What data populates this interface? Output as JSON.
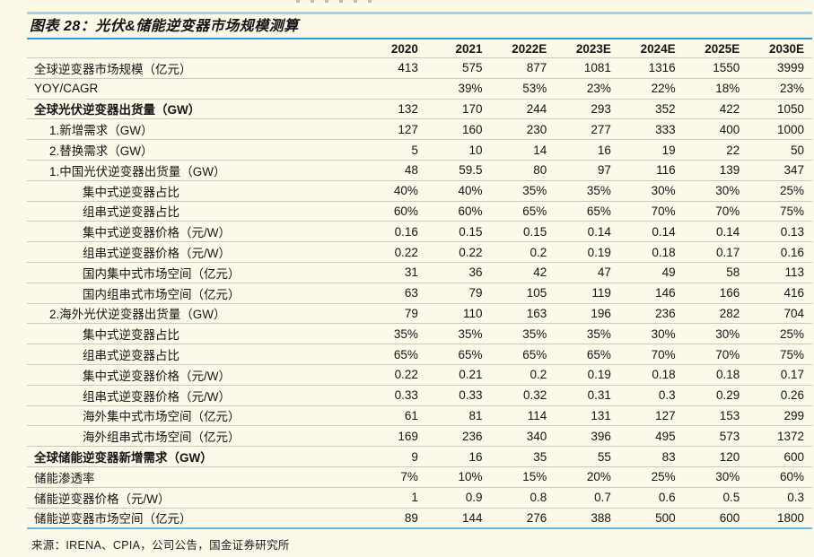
{
  "colors": {
    "background": "#fdf9e9",
    "top_rule": "#a5d2e8",
    "title_rule": "#2f9ad0",
    "bottom_rule": "#5fb9e4",
    "row_line": "#c9c9c0"
  },
  "chart_data": {
    "type": "table",
    "title": "图表 28：光伏&储能逆变器市场规模测算",
    "source": "来源：IRENA、CPIA，公司公告，国金证券研究所",
    "columns": [
      "2020",
      "2021",
      "2022E",
      "2023E",
      "2024E",
      "2025E",
      "2030E"
    ],
    "rows": [
      {
        "label": "全球逆变器市场规模（亿元）",
        "indent": 0,
        "bold": false,
        "values": [
          "413",
          "575",
          "877",
          "1081",
          "1316",
          "1550",
          "3999"
        ]
      },
      {
        "label": "YOY/CAGR",
        "indent": 0,
        "bold": false,
        "values": [
          "",
          "39%",
          "53%",
          "23%",
          "22%",
          "18%",
          "23%"
        ]
      },
      {
        "label": "全球光伏逆变器出货量（GW）",
        "indent": 0,
        "bold": true,
        "values": [
          "132",
          "170",
          "244",
          "293",
          "352",
          "422",
          "1050"
        ]
      },
      {
        "label": "1.新增需求（GW）",
        "indent": 1,
        "bold": false,
        "values": [
          "127",
          "160",
          "230",
          "277",
          "333",
          "400",
          "1000"
        ]
      },
      {
        "label": "2.替换需求（GW）",
        "indent": 1,
        "bold": false,
        "values": [
          "5",
          "10",
          "14",
          "16",
          "19",
          "22",
          "50"
        ]
      },
      {
        "label": "1.中国光伏逆变器出货量（GW）",
        "indent": 1,
        "bold": false,
        "values": [
          "48",
          "59.5",
          "80",
          "97",
          "116",
          "139",
          "347"
        ]
      },
      {
        "label": "集中式逆变器占比",
        "indent": 2,
        "bold": false,
        "values": [
          "40%",
          "40%",
          "35%",
          "35%",
          "30%",
          "30%",
          "25%"
        ]
      },
      {
        "label": "组串式逆变器占比",
        "indent": 2,
        "bold": false,
        "values": [
          "60%",
          "60%",
          "65%",
          "65%",
          "70%",
          "70%",
          "75%"
        ]
      },
      {
        "label": "集中式逆变器价格（元/W）",
        "indent": 2,
        "bold": false,
        "values": [
          "0.16",
          "0.15",
          "0.15",
          "0.14",
          "0.14",
          "0.14",
          "0.13"
        ]
      },
      {
        "label": "组串式逆变器价格（元/W）",
        "indent": 2,
        "bold": false,
        "values": [
          "0.22",
          "0.22",
          "0.2",
          "0.19",
          "0.18",
          "0.17",
          "0.16"
        ]
      },
      {
        "label": "国内集中式市场空间（亿元）",
        "indent": 2,
        "bold": false,
        "values": [
          "31",
          "36",
          "42",
          "47",
          "49",
          "58",
          "113"
        ]
      },
      {
        "label": "国内组串式市场空间（亿元）",
        "indent": 2,
        "bold": false,
        "values": [
          "63",
          "79",
          "105",
          "119",
          "146",
          "166",
          "416"
        ]
      },
      {
        "label": "2.海外光伏逆变器出货量（GW）",
        "indent": 1,
        "bold": false,
        "values": [
          "79",
          "110",
          "163",
          "196",
          "236",
          "282",
          "704"
        ]
      },
      {
        "label": "集中式逆变器占比",
        "indent": 2,
        "bold": false,
        "values": [
          "35%",
          "35%",
          "35%",
          "35%",
          "30%",
          "30%",
          "25%"
        ]
      },
      {
        "label": "组串式逆变器占比",
        "indent": 2,
        "bold": false,
        "values": [
          "65%",
          "65%",
          "65%",
          "65%",
          "70%",
          "70%",
          "75%"
        ]
      },
      {
        "label": "集中式逆变器价格（元/W）",
        "indent": 2,
        "bold": false,
        "values": [
          "0.22",
          "0.21",
          "0.2",
          "0.19",
          "0.18",
          "0.18",
          "0.17"
        ]
      },
      {
        "label": "组串式逆变器价格（元/W）",
        "indent": 2,
        "bold": false,
        "values": [
          "0.33",
          "0.33",
          "0.32",
          "0.31",
          "0.3",
          "0.29",
          "0.26"
        ]
      },
      {
        "label": "海外集中式市场空间（亿元）",
        "indent": 2,
        "bold": false,
        "values": [
          "61",
          "81",
          "114",
          "131",
          "127",
          "153",
          "299"
        ]
      },
      {
        "label": "海外组串式市场空间（亿元）",
        "indent": 2,
        "bold": false,
        "values": [
          "169",
          "236",
          "340",
          "396",
          "495",
          "573",
          "1372"
        ]
      },
      {
        "label": "全球储能逆变器新增需求（GW）",
        "indent": 0,
        "bold": true,
        "values": [
          "9",
          "16",
          "35",
          "55",
          "83",
          "120",
          "600"
        ]
      },
      {
        "label": "储能渗透率",
        "indent": 0,
        "bold": false,
        "values": [
          "7%",
          "10%",
          "15%",
          "20%",
          "25%",
          "30%",
          "60%"
        ]
      },
      {
        "label": "储能逆变器价格（元/W）",
        "indent": 0,
        "bold": false,
        "values": [
          "1",
          "0.9",
          "0.8",
          "0.7",
          "0.6",
          "0.5",
          "0.3"
        ]
      },
      {
        "label": "储能逆变器市场空间（亿元）",
        "indent": 0,
        "bold": false,
        "values": [
          "89",
          "144",
          "276",
          "388",
          "500",
          "600",
          "1800"
        ]
      }
    ]
  }
}
